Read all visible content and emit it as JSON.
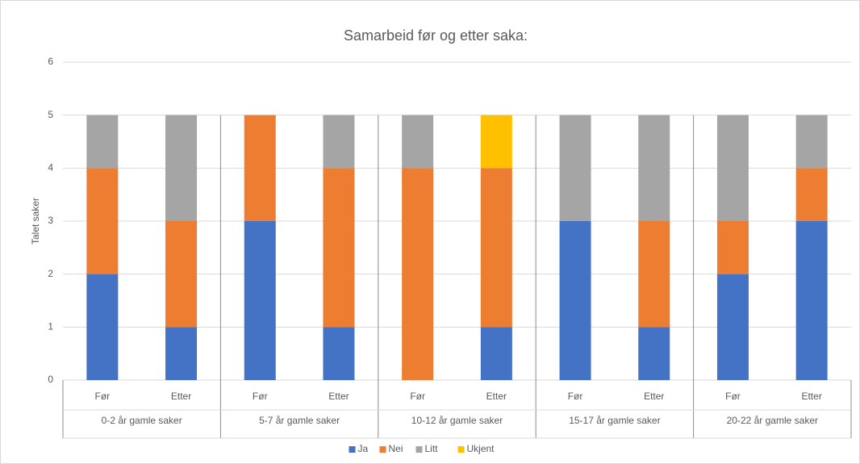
{
  "chart_data": {
    "type": "stacked_bar",
    "title": "Samarbeid før og etter saka:",
    "y_label": "Talet saker",
    "categories": [
      "Før",
      "Etter",
      "Før",
      "Etter",
      "Før",
      "Etter",
      "Før",
      "Etter",
      "Før",
      "Etter"
    ],
    "groups": [
      "0-2 år gamle saker",
      "5-7 år gamle saker",
      "10-12 år gamle saker",
      "15-17 år gamle saker",
      "20-22 år gamle saker"
    ],
    "series": [
      {
        "name": "Ja",
        "color": "#4472c4",
        "values": [
          2,
          1,
          3,
          1,
          0,
          1,
          3,
          1,
          2,
          3
        ]
      },
      {
        "name": "Nei",
        "color": "#ed7d31",
        "values": [
          2,
          2,
          2,
          3,
          4,
          3,
          0,
          2,
          1,
          1
        ]
      },
      {
        "name": "Litt",
        "color": "#a5a5a5",
        "values": [
          1,
          2,
          0,
          1,
          1,
          0,
          2,
          2,
          2,
          1
        ]
      },
      {
        "name": "Ukjent",
        "color": "#ffc000",
        "values": [
          0,
          0,
          0,
          0,
          0,
          1,
          0,
          0,
          0,
          0
        ]
      }
    ],
    "ylim": [
      0,
      6
    ],
    "yticks": [
      0,
      1,
      2,
      3,
      4,
      5,
      6
    ],
    "grid": true,
    "legend": "bottom"
  }
}
